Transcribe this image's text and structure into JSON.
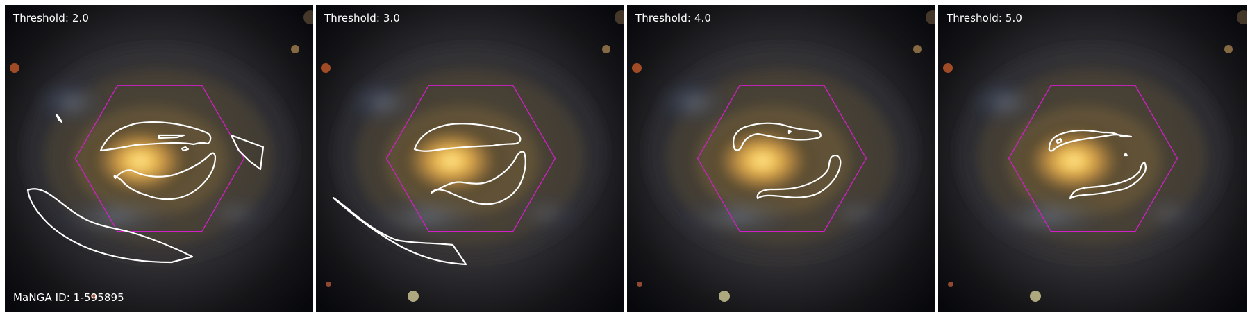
{
  "figure": {
    "manga_id_label": "MaNGA ID: 1-595895",
    "panels": [
      {
        "threshold_label": "Threshold: 2.0"
      },
      {
        "threshold_label": "Threshold: 3.0"
      },
      {
        "threshold_label": "Threshold: 4.0"
      },
      {
        "threshold_label": "Threshold: 5.0"
      }
    ]
  },
  "colors": {
    "background": "#08090d",
    "hexagon": "#d21fc7",
    "contour": "#ffffff",
    "bulge": "#ffd66b",
    "disk": "#a7894f"
  }
}
